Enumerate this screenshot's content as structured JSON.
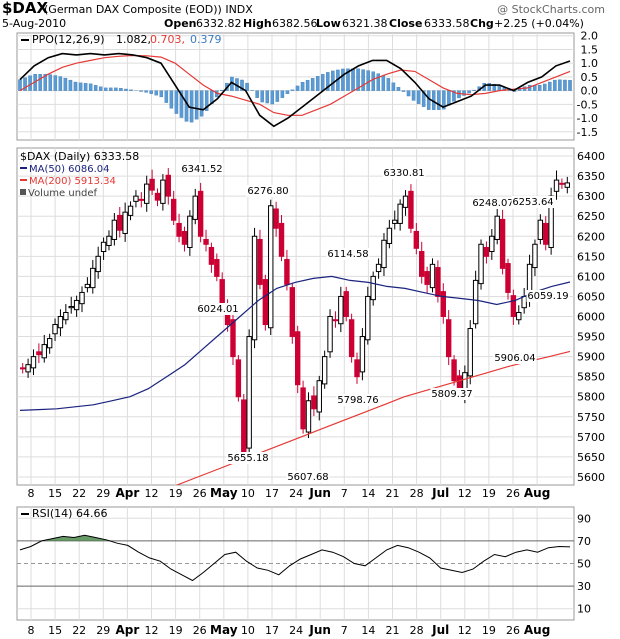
{
  "header": {
    "symbol": "$DAX",
    "description": "(German DAX Composite (EOD)) INDX",
    "copyright": "@ StockCharts.com",
    "date": "5-Aug-2010",
    "open_label": "Open",
    "open": "6332.82",
    "high_label": "High",
    "high": "6382.56",
    "low_label": "Low",
    "low": "6321.38",
    "close_label": "Close",
    "close": "6333.58",
    "chg_label": "Chg",
    "chg": "+2.25 (+0.04%)"
  },
  "colors": {
    "up": "#000000",
    "down": "#cc0033",
    "ma50": "#1a237e",
    "ma200": "#e53935",
    "ppo_hist": "#5b9bd5",
    "ppo_signal": "#e53935",
    "grid": "#dddddd",
    "rsi_fill": "#4e8a4e"
  },
  "ppo_panel": {
    "legend_name": "PPO(12,26,9)",
    "legend_v1": "1.082,",
    "legend_v2": "0.703,",
    "legend_v3": "0.379",
    "yticks": [
      "2.0",
      "1.5",
      "1.0",
      "0.5",
      "0.0",
      "-0.5",
      "-1.0",
      "-1.5"
    ]
  },
  "price_panel": {
    "legend_title": "$DAX (Daily) 6333.58",
    "legend_ma50": "MA(50) 6086.04",
    "legend_ma200": "MA(200) 5913.34",
    "legend_volume": "Volume undef",
    "yticks": [
      "6400",
      "6350",
      "6300",
      "6250",
      "6200",
      "6150",
      "6100",
      "6050",
      "6000",
      "5950",
      "5900",
      "5850",
      "5800",
      "5750",
      "5700",
      "5650",
      "5600"
    ],
    "annotations": [
      "6341.52",
      "6276.80",
      "6024.01",
      "5655.18",
      "5607.68",
      "6114.58",
      "5798.76",
      "6330.81",
      "5809.37",
      "6248.07",
      "6253.64",
      "6059.19",
      "5906.04"
    ]
  },
  "rsi_panel": {
    "legend": "RSI(14) 64.66",
    "yticks": [
      "90",
      "70",
      "50",
      "30",
      "10"
    ]
  },
  "x_axis": {
    "labels": [
      "8",
      "15",
      "22",
      "29",
      "Apr",
      "12",
      "19",
      "26",
      "May",
      "10",
      "17",
      "24",
      "Jun",
      "7",
      "14",
      "21",
      "28",
      "Jul",
      "12",
      "19",
      "26",
      "Aug"
    ],
    "bold": [
      "Apr",
      "May",
      "Jun",
      "Jul",
      "Aug"
    ]
  },
  "chart_data": [
    {
      "type": "candlestick",
      "title": "$DAX (Daily) 6333.58",
      "ylim": [
        5580,
        6420
      ],
      "x_range": [
        "2010-03-05",
        "2010-08-05"
      ],
      "close_series": [
        5870,
        5880,
        5900,
        5905,
        5930,
        5945,
        5980,
        6000,
        6010,
        6025,
        6040,
        6060,
        6080,
        6120,
        6150,
        6185,
        6200,
        6240,
        6215,
        6260,
        6275,
        6300,
        6290,
        6330,
        6315,
        6290,
        6340,
        6300,
        6240,
        6200,
        6180,
        6250,
        6300,
        6200,
        6180,
        6130,
        6100,
        6030,
        5980,
        5900,
        5800,
        5660,
        5950,
        6200,
        6080,
        5980,
        6276,
        6220,
        6150,
        6080,
        5950,
        5830,
        5720,
        5790,
        5770,
        5840,
        5900,
        6000,
        5990,
        6050,
        6000,
        5900,
        5850,
        5950,
        6050,
        6100,
        6130,
        6190,
        6220,
        6240,
        6280,
        6300,
        6220,
        6170,
        6100,
        6080,
        6130,
        6050,
        6000,
        5900,
        5840,
        5810,
        5860,
        5970,
        6090,
        6180,
        6150,
        6200,
        6250,
        6120,
        6060,
        6000,
        6010,
        6050,
        6130,
        6180,
        6240,
        6180,
        6300,
        6340,
        6330,
        6333
      ],
      "ma50": [
        5766,
        5768,
        5770,
        5775,
        5780,
        5790,
        5800,
        5820,
        5850,
        5880,
        5920,
        5960,
        6000,
        6040,
        6070,
        6085,
        6095,
        6100,
        6090,
        6085,
        6075,
        6070,
        6060,
        6050,
        6045,
        6040,
        6030,
        6040,
        6060,
        6075,
        6086
      ],
      "ma200": [
        5525,
        5540,
        5560,
        5580,
        5600,
        5620,
        5640,
        5660,
        5680,
        5700,
        5720,
        5740,
        5760,
        5780,
        5800,
        5815,
        5830,
        5845,
        5860,
        5875,
        5888,
        5900,
        5913
      ]
    },
    {
      "type": "line",
      "title": "PPO(12,26,9)",
      "ylim": [
        -1.8,
        2.1
      ],
      "series": [
        {
          "name": "PPO",
          "values": [
            0.4,
            0.9,
            1.2,
            1.35,
            1.3,
            1.35,
            1.3,
            1.35,
            1.3,
            1.2,
            1.0,
            0.2,
            -0.6,
            -0.7,
            -0.3,
            0.3,
            0.0,
            -0.9,
            -1.3,
            -1.0,
            -0.6,
            -0.2,
            0.2,
            0.6,
            0.9,
            1.1,
            1.1,
            0.8,
            0.3,
            -0.3,
            -0.6,
            -0.4,
            -0.2,
            0.2,
            0.2,
            0.0,
            0.3,
            0.5,
            0.9,
            1.08
          ]
        },
        {
          "name": "Signal",
          "values": [
            0.0,
            0.3,
            0.6,
            0.85,
            1.0,
            1.1,
            1.2,
            1.25,
            1.28,
            1.27,
            1.22,
            1.0,
            0.6,
            0.2,
            -0.1,
            -0.2,
            -0.35,
            -0.5,
            -0.8,
            -0.9,
            -0.9,
            -0.7,
            -0.5,
            -0.2,
            0.1,
            0.4,
            0.6,
            0.75,
            0.7,
            0.4,
            0.1,
            -0.1,
            -0.15,
            -0.1,
            0.0,
            0.05,
            0.1,
            0.3,
            0.5,
            0.7
          ]
        }
      ]
    },
    {
      "type": "line",
      "title": "RSI(14) 64.66",
      "ylim": [
        0,
        100
      ],
      "series": [
        {
          "name": "RSI(14)",
          "values": [
            62,
            65,
            70,
            72,
            74,
            73,
            75,
            73,
            71,
            68,
            66,
            60,
            55,
            52,
            45,
            40,
            35,
            42,
            50,
            58,
            60,
            52,
            46,
            44,
            40,
            48,
            54,
            58,
            62,
            60,
            56,
            50,
            48,
            55,
            62,
            66,
            64,
            60,
            55,
            46,
            44,
            42,
            45,
            52,
            58,
            56,
            60,
            62,
            60,
            64,
            65,
            64.66
          ]
        }
      ]
    }
  ]
}
